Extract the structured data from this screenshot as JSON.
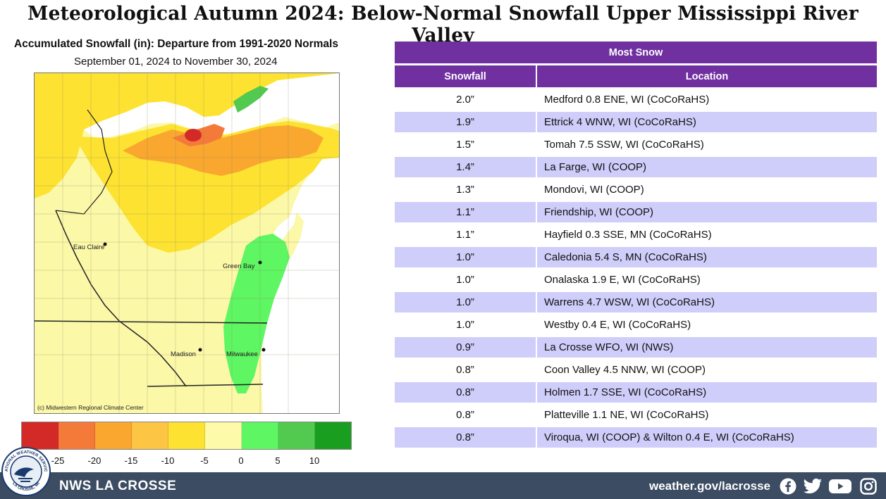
{
  "headline": "Meteorological Autumn 2024:  Below-Normal Snowfall Upper Mississippi River Valley",
  "map": {
    "title": "Accumulated Snowfall (in): Departure from 1991-2020 Normals",
    "subtitle": "September 01, 2024 to November 30, 2024",
    "copyright": "(c) Midwestern Regional Climate Center",
    "cities": [
      "Eau Claire",
      "Green Bay",
      "Madison",
      "Milwaukee"
    ],
    "legend": {
      "colors": [
        "#d42a27",
        "#f47a3a",
        "#f9a72f",
        "#fcc543",
        "#fde231",
        "#fdfaa9",
        "#5ef662",
        "#52c94f",
        "#1a9e1f"
      ],
      "ticks": [
        "-25",
        "-20",
        "-15",
        "-10",
        "-5",
        "0",
        "5",
        "10"
      ]
    }
  },
  "table": {
    "banner": "Most Snow",
    "col_snowfall": "Snowfall",
    "col_location": "Location",
    "rows": [
      {
        "amount": "2.0”",
        "location": "Medford 0.8 ENE, WI (CoCoRaHS)"
      },
      {
        "amount": "1.9”",
        "location": "Ettrick 4 WNW, WI (CoCoRaHS)"
      },
      {
        "amount": "1.5”",
        "location": "Tomah 7.5 SSW, WI (CoCoRaHS)"
      },
      {
        "amount": "1.4”",
        "location": "La Farge, WI (COOP)"
      },
      {
        "amount": "1.3”",
        "location": "Mondovi, WI (COOP)"
      },
      {
        "amount": "1.1”",
        "location": "Friendship, WI (COOP)"
      },
      {
        "amount": "1.1”",
        "location": "Hayfield 0.3 SSE, MN (CoCoRaHS)"
      },
      {
        "amount": "1.0”",
        "location": "Caledonia 5.4 S, MN (CoCoRaHS)"
      },
      {
        "amount": "1.0”",
        "location": "Onalaska 1.9 E, WI (CoCoRaHS)"
      },
      {
        "amount": "1.0”",
        "location": "Warrens 4.7 WSW, WI (CoCoRaHS)"
      },
      {
        "amount": "1.0”",
        "location": "Westby 0.4 E, WI (CoCoRaHS)"
      },
      {
        "amount": "0.9”",
        "location": "La Crosse WFO, WI (NWS)"
      },
      {
        "amount": "0.8”",
        "location": "Coon Valley 4.5 NNW, WI (COOP)"
      },
      {
        "amount": "0.8”",
        "location": "Holmen 1.7 SSE, WI (CoCoRaHS)"
      },
      {
        "amount": "0.8”",
        "location": "Platteville 1.1 NE, WI (CoCoRaHS)"
      },
      {
        "amount": "0.8”",
        "location": "Viroqua, WI (COOP)  & Wilton 0.4 E, WI (CoCoRaHS)"
      }
    ]
  },
  "footer": {
    "brand": "NWS LA CROSSE",
    "site": "weather.gov/lacrosse",
    "social_icons": [
      "facebook-icon",
      "twitter-icon",
      "youtube-icon",
      "instagram-icon"
    ],
    "logo_text_top": "NATIONAL WEATHER SERVICE",
    "logo_text_bottom": "LA CROSSE, WI"
  }
}
